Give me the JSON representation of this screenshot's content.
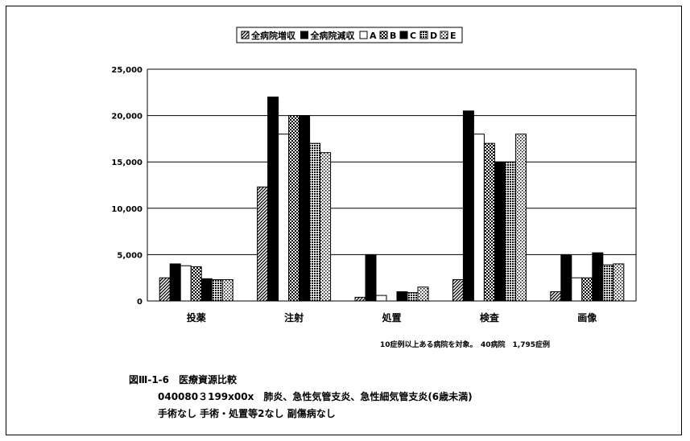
{
  "chart_data": {
    "type": "bar",
    "categories": [
      "投薬",
      "注射",
      "処置",
      "検査",
      "画像"
    ],
    "series": [
      {
        "name": "全病院増収",
        "values": [
          2500,
          12300,
          400,
          2300,
          1000
        ],
        "color": "#2a2a2a",
        "pattern": "diag"
      },
      {
        "name": "全病院減収",
        "values": [
          4000,
          22000,
          5000,
          20500,
          5000
        ],
        "color": "#000000",
        "pattern": "solid"
      },
      {
        "name": "A",
        "values": [
          3800,
          18000,
          600,
          18000,
          2500
        ],
        "color": "#ffffff",
        "pattern": "white"
      },
      {
        "name": "B",
        "values": [
          3700,
          20000,
          0,
          17000,
          2500
        ],
        "color": "#3a3a3a",
        "pattern": "check"
      },
      {
        "name": "C",
        "values": [
          2400,
          20000,
          1000,
          15000,
          5200
        ],
        "color": "#000000",
        "pattern": "solid"
      },
      {
        "name": "D",
        "values": [
          2300,
          17000,
          900,
          15000,
          3900
        ],
        "color": "#2a2a2a",
        "pattern": "dots"
      },
      {
        "name": "E",
        "values": [
          2300,
          16000,
          1500,
          18000,
          4000
        ],
        "color": "#6a6a6a",
        "pattern": "lightdots"
      }
    ],
    "yticks": [
      "0",
      "5,000",
      "10,000",
      "15,000",
      "20,000",
      "25,000"
    ],
    "ylim": [
      0,
      25000
    ],
    "grid": true,
    "legend_position": "top"
  },
  "note": "10症例以上ある病院を対象。　40病院　1,795症例",
  "caption": {
    "line1": "図Ⅲ-1-6　医療資源比較",
    "line2": "040080３199x00x　肺炎、急性気管支炎、急性細気管支炎(6歳未満)",
    "line3": "手術なし 手術・処置等2なし 副傷病なし"
  }
}
